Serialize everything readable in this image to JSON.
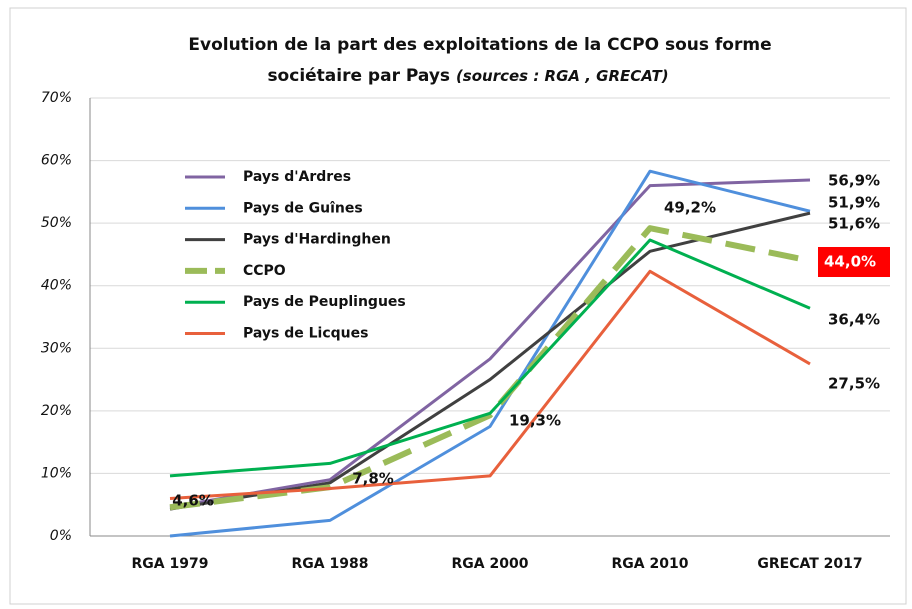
{
  "chart_data": {
    "type": "line",
    "title_lines": [
      "Evolution de la part des exploitations de la CCPO sous forme",
      "sociétaire par Pays"
    ],
    "subtitle": "(sources : RGA , GRECAT)",
    "categories": [
      "RGA 1979",
      "RGA 1988",
      "RGA 2000",
      "RGA 2010",
      "GRECAT 2017"
    ],
    "ylim": [
      0,
      70
    ],
    "yticks": [
      {
        "value": 0,
        "label": "0%"
      },
      {
        "value": 10,
        "label": "10%"
      },
      {
        "value": 20,
        "label": "20%"
      },
      {
        "value": 30,
        "label": "30%"
      },
      {
        "value": 40,
        "label": "40%"
      },
      {
        "value": 50,
        "label": "50%"
      },
      {
        "value": 60,
        "label": "60%"
      },
      {
        "value": 70,
        "label": "70%"
      }
    ],
    "grid": true,
    "legend": "upper-left",
    "series": [
      {
        "name": "Pays d'Ardres",
        "color": "#8064a2",
        "values": [
          4.6,
          9.0,
          28.3,
          56.0,
          56.9
        ],
        "value_labels": [
          null,
          null,
          null,
          null,
          "56,9%"
        ]
      },
      {
        "name": "Pays de Guînes",
        "color": "#4f8fdc",
        "values": [
          0,
          2.5,
          17.5,
          58.3,
          51.9
        ],
        "value_labels": [
          null,
          null,
          null,
          null,
          "51,9%"
        ]
      },
      {
        "name": "Pays d'Hardinghen",
        "color": "#404040",
        "values": [
          4.3,
          8.5,
          25.0,
          45.5,
          51.6
        ],
        "value_labels": [
          null,
          null,
          null,
          null,
          "51,6%"
        ]
      },
      {
        "name": "CCPO",
        "color": "#9bbb59",
        "dashed": true,
        "values": [
          4.6,
          7.8,
          19.3,
          49.2,
          44.0
        ],
        "value_labels": [
          "4,6%",
          "7,8%",
          "19,3%",
          "49,2%",
          "44,0%"
        ]
      },
      {
        "name": "Pays de Peuplingues",
        "color": "#00b050",
        "values": [
          9.6,
          11.6,
          19.6,
          47.3,
          36.4
        ],
        "value_labels": [
          null,
          null,
          null,
          null,
          "36,4%"
        ]
      },
      {
        "name": "Pays de Licques",
        "color": "#e8603c",
        "values": [
          6.0,
          7.6,
          9.6,
          42.3,
          27.5
        ],
        "value_labels": [
          null,
          null,
          null,
          null,
          "27,5%"
        ]
      }
    ]
  }
}
